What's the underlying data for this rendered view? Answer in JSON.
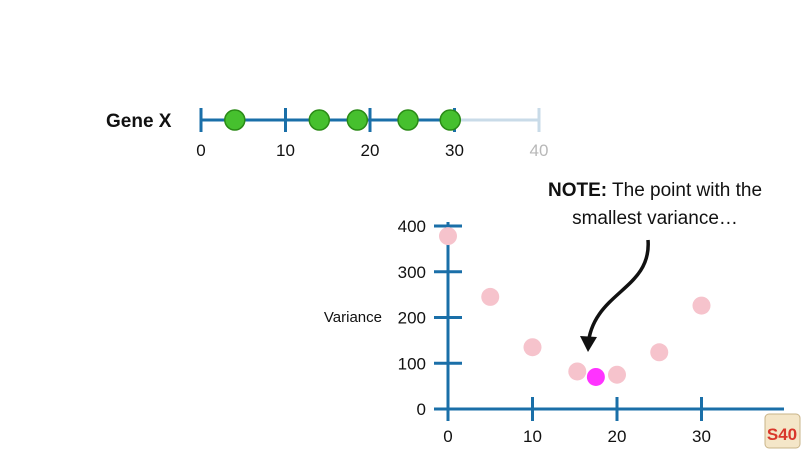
{
  "gene_axis": {
    "label": "Gene X",
    "ticks": [
      0,
      10,
      20,
      30,
      40
    ],
    "tick_labels": [
      "0",
      "10",
      "20",
      "30",
      "40"
    ],
    "active_max": 30,
    "axis_color": "#1a6fa8",
    "faded_color": "#c9dbe8",
    "faded_label_color": "#b8b8b8",
    "points": [
      4,
      14,
      18.5,
      24.5,
      29.5
    ],
    "point_color": "#46c02e",
    "point_edge_color": "#2a8a16"
  },
  "chart_data": {
    "type": "scatter",
    "title": "",
    "xlabel": "",
    "ylabel": "Variance",
    "xlim": [
      0,
      40
    ],
    "ylim": [
      0,
      400
    ],
    "x_ticks": [
      0,
      10,
      20,
      30
    ],
    "x_tick_labels": [
      "0",
      "10",
      "20",
      "30"
    ],
    "y_ticks": [
      0,
      100,
      200,
      300,
      400
    ],
    "y_tick_labels": [
      "0",
      "100",
      "200",
      "300",
      "400"
    ],
    "axis_color": "#1a6fa8",
    "point_color": "#f6c3cc",
    "highlight_color": "#ff33ff",
    "series": [
      {
        "x": [
          0,
          5,
          10,
          15.3,
          20,
          25,
          30
        ],
        "y": [
          378,
          245,
          135,
          82,
          75,
          124,
          226
        ]
      }
    ],
    "highlight_point": {
      "x": 17.5,
      "y": 70
    }
  },
  "annotation": {
    "bold": "NOTE:",
    "line1_rest": " The point with the",
    "line2": "smallest variance…"
  },
  "logo": {
    "text": "S40"
  }
}
